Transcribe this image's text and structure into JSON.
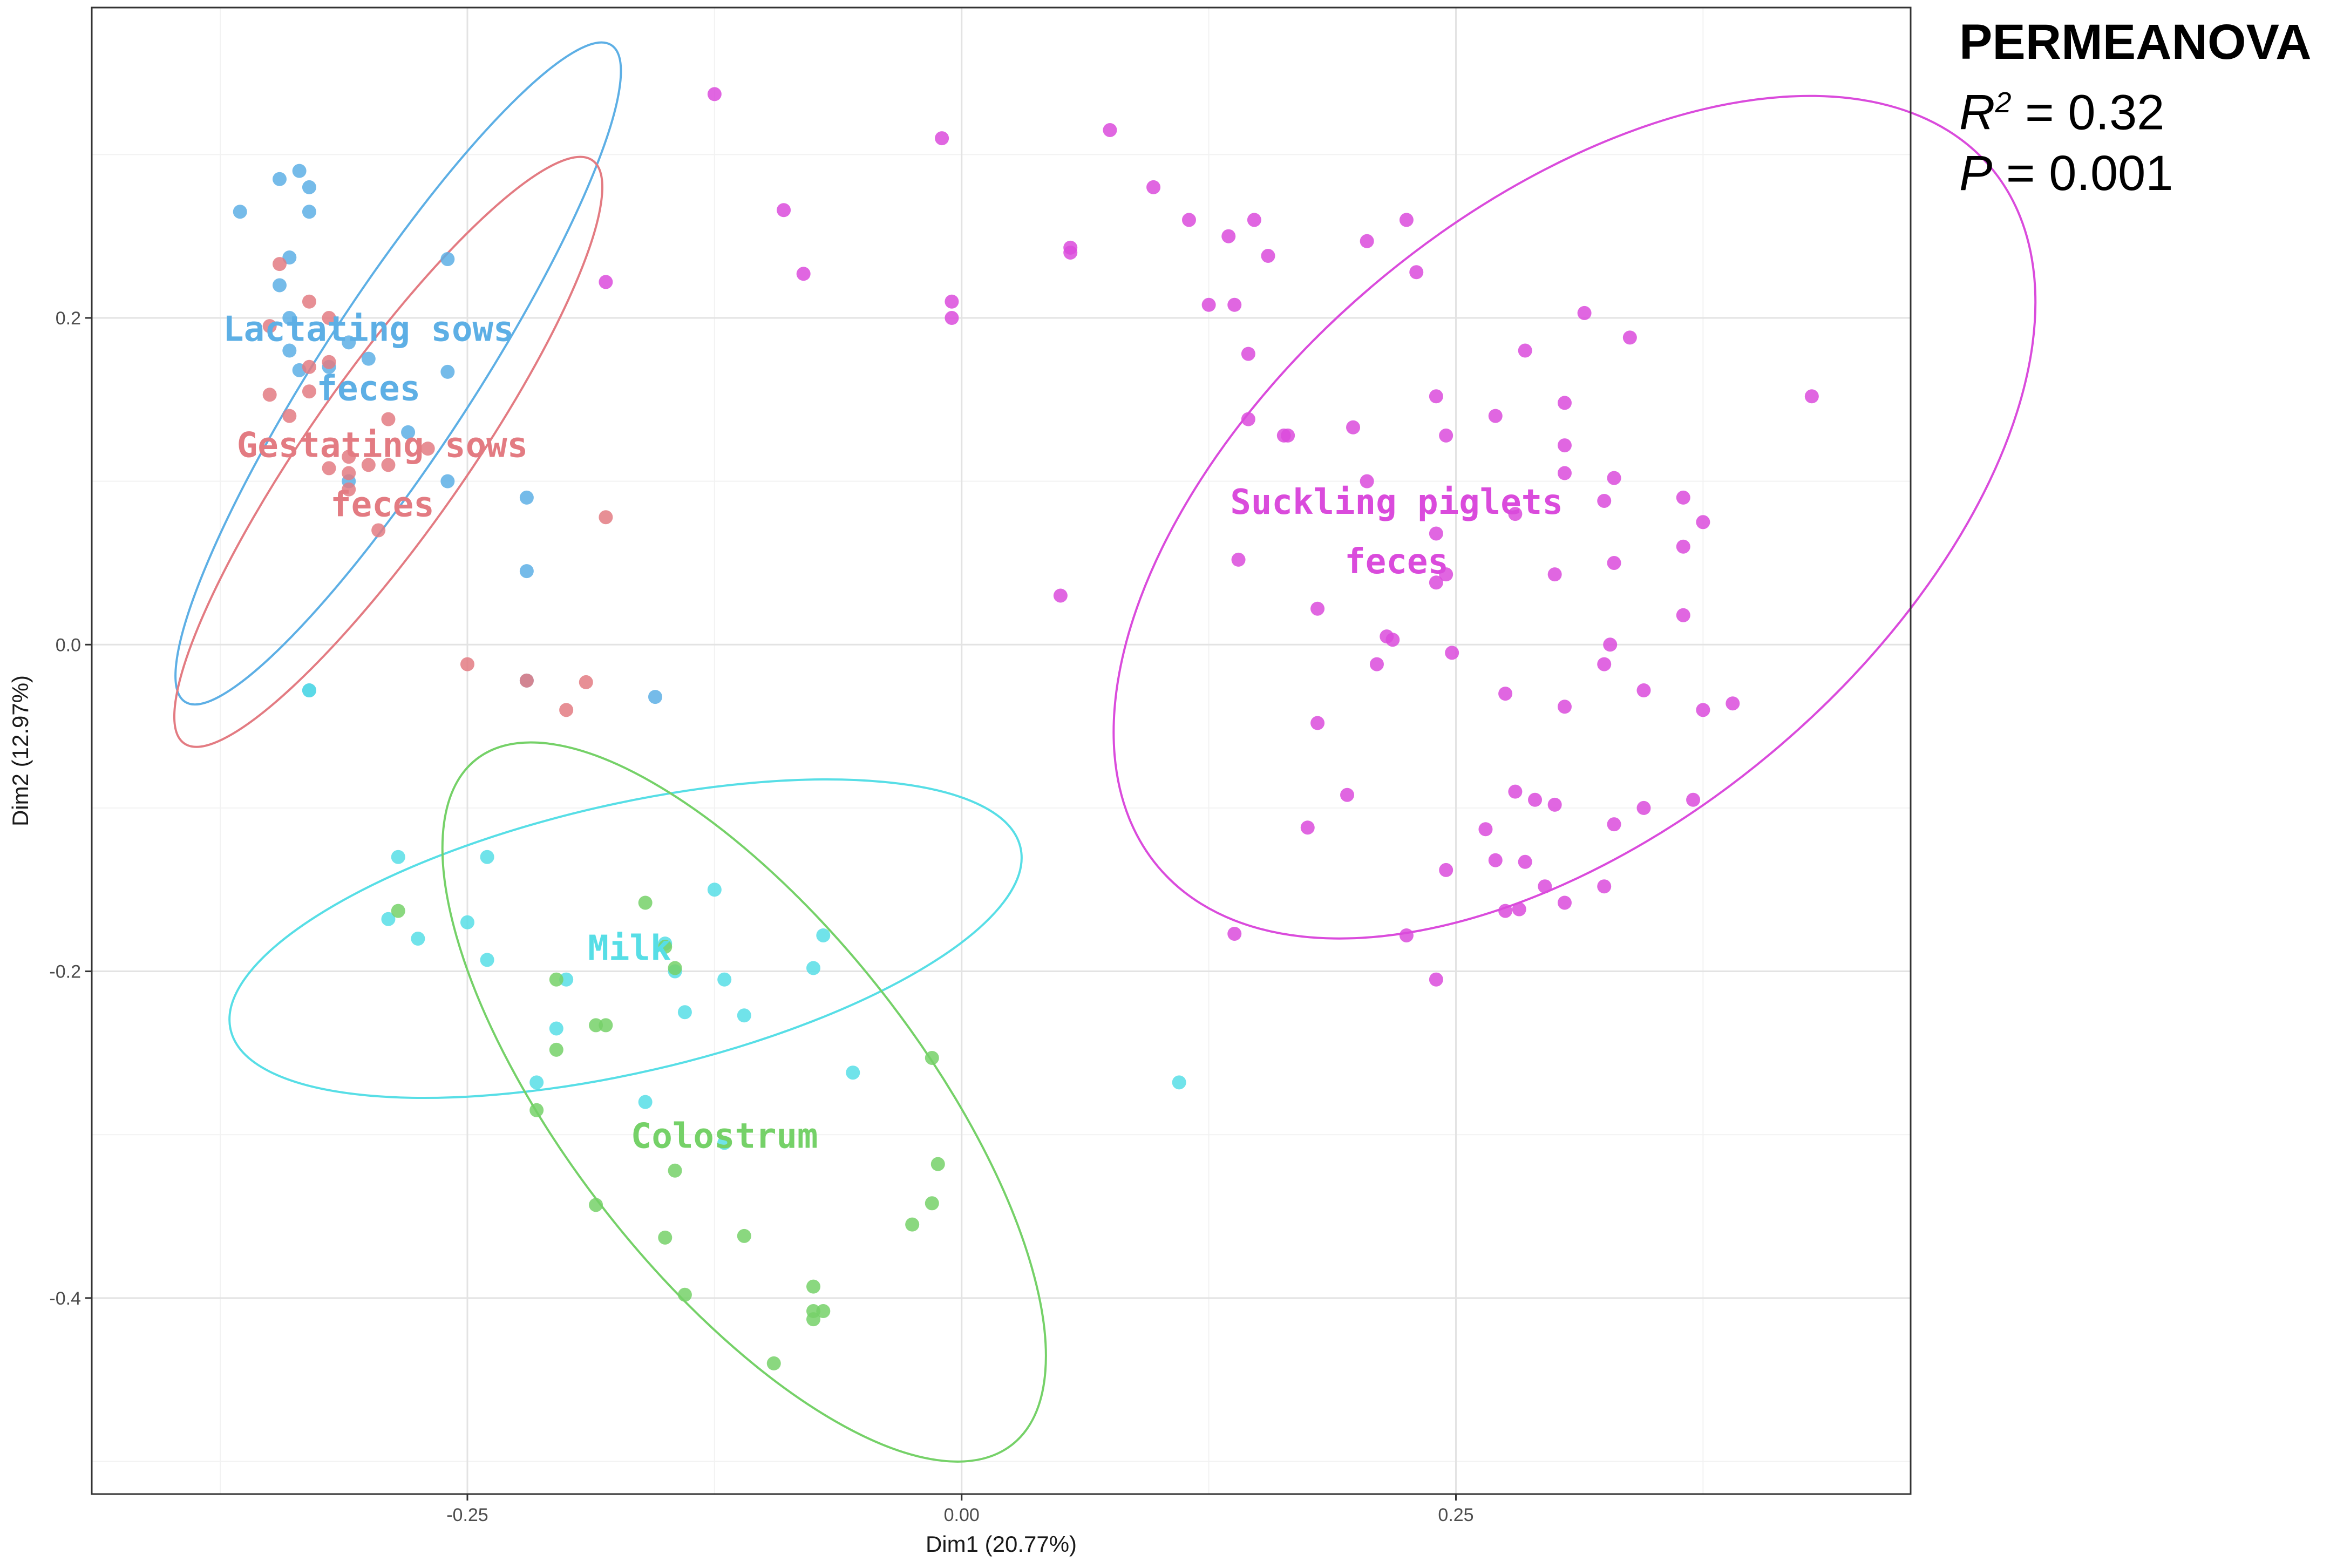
{
  "stats": {
    "title": "PERMEANOVA",
    "r2_symbol": "R",
    "r2_sup": "2",
    "r2_value": " = 0.32",
    "p_symbol": "P",
    "p_value": " = 0.001"
  },
  "chart_data": {
    "type": "scatter",
    "xlabel": "Dim1 (20.77%)",
    "ylabel": "Dim2 (12.97%)",
    "xlim": [
      -0.44,
      0.48
    ],
    "ylim": [
      -0.52,
      0.39
    ],
    "xticks": [
      -0.25,
      0.0,
      0.25
    ],
    "xtick_labels": [
      "-0.25",
      "0.00",
      "0.25"
    ],
    "yticks": [
      -0.4,
      -0.2,
      0.0,
      0.2
    ],
    "ytick_labels": [
      "-0.4",
      "-0.2",
      "0.0",
      "0.2"
    ],
    "grid": true,
    "series": [
      {
        "name": "Lactating sows feces",
        "label_lines": [
          "Lactating sows",
          "feces"
        ],
        "color": "#5DAFE5",
        "label_pos": [
          -0.3,
          0.186
        ],
        "ellipse": {
          "cx": -0.285,
          "cy": 0.166,
          "rx": 0.198,
          "ry": 0.047,
          "angle_deg": -57
        },
        "points": [
          [
            -0.365,
            0.265
          ],
          [
            -0.345,
            0.285
          ],
          [
            -0.335,
            0.29
          ],
          [
            -0.33,
            0.28
          ],
          [
            -0.33,
            0.265
          ],
          [
            -0.34,
            0.237
          ],
          [
            -0.345,
            0.22
          ],
          [
            -0.34,
            0.2
          ],
          [
            -0.34,
            0.18
          ],
          [
            -0.335,
            0.168
          ],
          [
            -0.32,
            0.17
          ],
          [
            -0.31,
            0.185
          ],
          [
            -0.3,
            0.175
          ],
          [
            -0.26,
            0.236
          ],
          [
            -0.26,
            0.167
          ],
          [
            -0.28,
            0.13
          ],
          [
            -0.31,
            0.1
          ],
          [
            -0.26,
            0.1
          ],
          [
            -0.22,
            0.09
          ],
          [
            -0.22,
            0.045
          ],
          [
            -0.22,
            -0.022
          ],
          [
            -0.155,
            -0.032
          ],
          [
            -0.33,
            -0.028
          ]
        ]
      },
      {
        "name": "Gestating sows feces",
        "label_lines": [
          "Gestating sows",
          "feces"
        ],
        "color": "#E37B82",
        "label_pos": [
          -0.293,
          0.115
        ],
        "ellipse": {
          "cx": -0.29,
          "cy": 0.118,
          "rx": 0.18,
          "ry": 0.048,
          "angle_deg": -55
        },
        "points": [
          [
            -0.345,
            0.233
          ],
          [
            -0.33,
            0.21
          ],
          [
            -0.32,
            0.2
          ],
          [
            -0.35,
            0.195
          ],
          [
            -0.33,
            0.17
          ],
          [
            -0.32,
            0.173
          ],
          [
            -0.35,
            0.153
          ],
          [
            -0.33,
            0.155
          ],
          [
            -0.34,
            0.14
          ],
          [
            -0.31,
            0.115
          ],
          [
            -0.32,
            0.108
          ],
          [
            -0.31,
            0.105
          ],
          [
            -0.3,
            0.11
          ],
          [
            -0.29,
            0.138
          ],
          [
            -0.29,
            0.11
          ],
          [
            -0.27,
            0.12
          ],
          [
            -0.31,
            0.095
          ],
          [
            -0.295,
            0.07
          ],
          [
            -0.25,
            -0.012
          ],
          [
            -0.22,
            -0.022
          ],
          [
            -0.19,
            -0.023
          ],
          [
            -0.18,
            0.078
          ],
          [
            -0.2,
            -0.04
          ]
        ]
      },
      {
        "name": "Suckling piglets feces",
        "label_lines": [
          "Suckling piglets",
          "feces"
        ],
        "color": "#DA4BDC",
        "label_pos": [
          0.22,
          0.08
        ],
        "ellipse": {
          "cx": 0.31,
          "cy": 0.078,
          "rx": 0.275,
          "ry": 0.188,
          "angle_deg": -40
        },
        "points": [
          [
            -0.125,
            0.337
          ],
          [
            -0.09,
            0.266
          ],
          [
            -0.08,
            0.227
          ],
          [
            -0.18,
            0.222
          ],
          [
            -0.01,
            0.31
          ],
          [
            -0.005,
            0.21
          ],
          [
            -0.005,
            0.2
          ],
          [
            0.075,
            0.315
          ],
          [
            0.055,
            0.243
          ],
          [
            0.055,
            0.24
          ],
          [
            0.097,
            0.28
          ],
          [
            0.115,
            0.26
          ],
          [
            0.135,
            0.25
          ],
          [
            0.148,
            0.26
          ],
          [
            0.155,
            0.238
          ],
          [
            0.205,
            0.247
          ],
          [
            0.225,
            0.26
          ],
          [
            0.23,
            0.228
          ],
          [
            0.125,
            0.208
          ],
          [
            0.138,
            0.208
          ],
          [
            0.145,
            0.178
          ],
          [
            0.145,
            0.138
          ],
          [
            0.163,
            0.128
          ],
          [
            0.165,
            0.128
          ],
          [
            0.198,
            0.133
          ],
          [
            0.205,
            0.1
          ],
          [
            0.24,
            0.152
          ],
          [
            0.245,
            0.128
          ],
          [
            0.27,
            0.14
          ],
          [
            0.285,
            0.18
          ],
          [
            0.305,
            0.148
          ],
          [
            0.305,
            0.122
          ],
          [
            0.305,
            0.105
          ],
          [
            0.315,
            0.203
          ],
          [
            0.338,
            0.188
          ],
          [
            0.325,
            0.088
          ],
          [
            0.33,
            0.102
          ],
          [
            0.365,
            0.09
          ],
          [
            0.375,
            0.075
          ],
          [
            0.43,
            0.152
          ],
          [
            0.05,
            0.03
          ],
          [
            0.14,
            0.052
          ],
          [
            0.24,
            0.068
          ],
          [
            0.24,
            0.038
          ],
          [
            0.245,
            0.043
          ],
          [
            0.28,
            0.08
          ],
          [
            0.3,
            0.043
          ],
          [
            0.33,
            0.05
          ],
          [
            0.365,
            0.06
          ],
          [
            0.365,
            0.018
          ],
          [
            0.18,
            0.022
          ],
          [
            0.215,
            0.005
          ],
          [
            0.218,
            0.003
          ],
          [
            0.21,
            -0.012
          ],
          [
            0.248,
            -0.005
          ],
          [
            0.275,
            -0.03
          ],
          [
            0.305,
            -0.038
          ],
          [
            0.325,
            -0.012
          ],
          [
            0.328,
            0.0
          ],
          [
            0.345,
            -0.028
          ],
          [
            0.375,
            -0.04
          ],
          [
            0.39,
            -0.036
          ],
          [
            0.18,
            -0.048
          ],
          [
            0.195,
            -0.092
          ],
          [
            0.175,
            -0.112
          ],
          [
            0.265,
            -0.113
          ],
          [
            0.28,
            -0.09
          ],
          [
            0.29,
            -0.095
          ],
          [
            0.3,
            -0.098
          ],
          [
            0.33,
            -0.11
          ],
          [
            0.345,
            -0.1
          ],
          [
            0.37,
            -0.095
          ],
          [
            0.27,
            -0.132
          ],
          [
            0.285,
            -0.133
          ],
          [
            0.295,
            -0.148
          ],
          [
            0.325,
            -0.148
          ],
          [
            0.245,
            -0.138
          ],
          [
            0.275,
            -0.163
          ],
          [
            0.282,
            -0.162
          ],
          [
            0.305,
            -0.158
          ],
          [
            0.225,
            -0.178
          ],
          [
            0.138,
            -0.177
          ],
          [
            0.24,
            -0.205
          ]
        ]
      },
      {
        "name": "Milk",
        "label_lines": [
          "Milk"
        ],
        "color": "#57DEE6",
        "label_pos": [
          -0.168,
          -0.193
        ],
        "ellipse": {
          "cx": -0.17,
          "cy": -0.18,
          "rx": 0.205,
          "ry": 0.082,
          "angle_deg": -13
        },
        "points": [
          [
            -0.285,
            -0.13
          ],
          [
            -0.24,
            -0.13
          ],
          [
            -0.29,
            -0.168
          ],
          [
            -0.275,
            -0.18
          ],
          [
            -0.25,
            -0.17
          ],
          [
            -0.24,
            -0.193
          ],
          [
            -0.125,
            -0.15
          ],
          [
            -0.2,
            -0.205
          ],
          [
            -0.205,
            -0.235
          ],
          [
            -0.15,
            -0.183
          ],
          [
            -0.145,
            -0.2
          ],
          [
            -0.14,
            -0.225
          ],
          [
            -0.12,
            -0.205
          ],
          [
            -0.11,
            -0.227
          ],
          [
            -0.07,
            -0.178
          ],
          [
            -0.075,
            -0.198
          ],
          [
            -0.215,
            -0.268
          ],
          [
            -0.16,
            -0.28
          ],
          [
            -0.12,
            -0.305
          ],
          [
            -0.055,
            -0.262
          ],
          [
            0.11,
            -0.268
          ],
          [
            -0.33,
            -0.028
          ]
        ]
      },
      {
        "name": "Colostrum",
        "label_lines": [
          "Colostrum"
        ],
        "color": "#75D168",
        "label_pos": [
          -0.12,
          -0.308
        ],
        "ellipse": {
          "cx": -0.11,
          "cy": -0.28,
          "rx": 0.22,
          "ry": 0.108,
          "angle_deg": 52
        },
        "points": [
          [
            -0.285,
            -0.163
          ],
          [
            -0.16,
            -0.158
          ],
          [
            -0.205,
            -0.205
          ],
          [
            -0.18,
            -0.233
          ],
          [
            -0.205,
            -0.248
          ],
          [
            -0.215,
            -0.285
          ],
          [
            -0.145,
            -0.198
          ],
          [
            -0.15,
            -0.185
          ],
          [
            -0.185,
            -0.233
          ],
          [
            -0.145,
            -0.322
          ],
          [
            -0.185,
            -0.343
          ],
          [
            -0.15,
            -0.363
          ],
          [
            -0.11,
            -0.362
          ],
          [
            -0.14,
            -0.398
          ],
          [
            -0.075,
            -0.393
          ],
          [
            -0.075,
            -0.408
          ],
          [
            -0.07,
            -0.408
          ],
          [
            -0.075,
            -0.413
          ],
          [
            -0.095,
            -0.44
          ],
          [
            -0.025,
            -0.355
          ],
          [
            -0.015,
            -0.342
          ],
          [
            -0.012,
            -0.318
          ],
          [
            -0.015,
            -0.253
          ]
        ]
      }
    ]
  }
}
